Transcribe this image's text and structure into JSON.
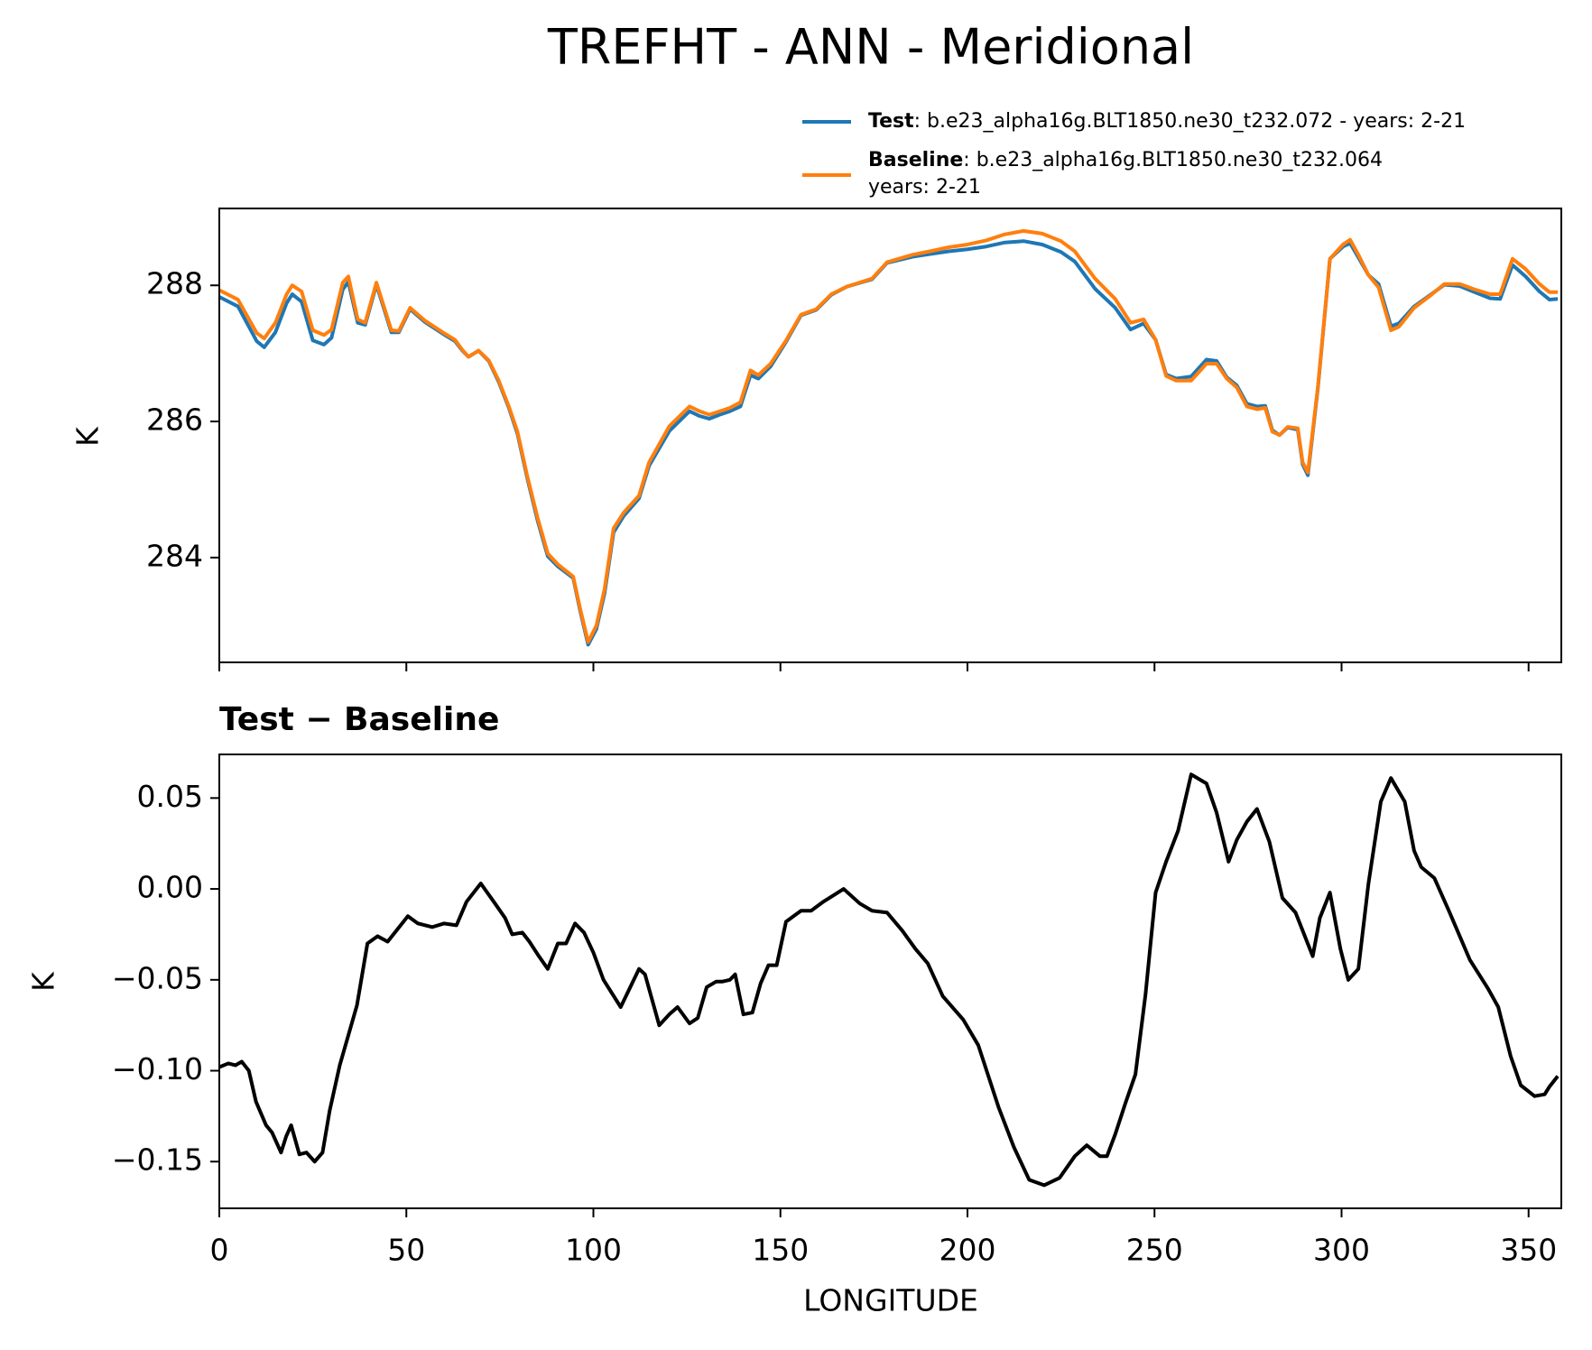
{
  "chart_data": [
    {
      "type": "line",
      "title": "TREFHT - ANN - Meridional",
      "ylabel": "K",
      "x": [
        0,
        5,
        10,
        12,
        15,
        18,
        19.5,
        22,
        25,
        28,
        30,
        33,
        34.5,
        37,
        39,
        42,
        46,
        48,
        51,
        55,
        60,
        63,
        65,
        66.6,
        69.3,
        72,
        74.7,
        77.4,
        79.7,
        82.4,
        85.1,
        87.8,
        90.5,
        94.6,
        96.5,
        98.6,
        100.8,
        103,
        105.4,
        108.1,
        112.2,
        114.9,
        120.3,
        125.7,
        128.4,
        131,
        133.8,
        136.5,
        139.3,
        142,
        144.1,
        147.4,
        151.5,
        155.5,
        159.6,
        163.6,
        167.7,
        174.5,
        178.5,
        185.3,
        190,
        195,
        200,
        205,
        210,
        215,
        220,
        225,
        228.7,
        234.1,
        239.5,
        243.6,
        247.1,
        250.3,
        253.1,
        255.8,
        259.8,
        263.9,
        266.6,
        269.3,
        272,
        274.7,
        277.4,
        279.6,
        281.5,
        283.4,
        285.6,
        288.3,
        289.6,
        291,
        293.7,
        296.9,
        300.4,
        302.3,
        304.5,
        307.2,
        309.9,
        313.2,
        315.3,
        319.4,
        323.5,
        327.5,
        331.6,
        335.6,
        339.7,
        342.4,
        345.7,
        349.2,
        352.9,
        355.6,
        357.8
      ],
      "series": [
        {
          "name": "Test",
          "label": ": b.e23_alpha16g.BLT1850.ne30_t232.072 - years: 2-21",
          "color": "#1f77b4",
          "values": [
            287.83,
            287.69,
            287.18,
            287.09,
            287.31,
            287.74,
            287.87,
            287.76,
            287.19,
            287.13,
            287.23,
            287.94,
            288.05,
            287.45,
            287.42,
            288.01,
            287.31,
            287.31,
            287.65,
            287.46,
            287.28,
            287.18,
            287.04,
            286.95,
            287.04,
            286.89,
            286.58,
            286.2,
            285.82,
            285.15,
            284.54,
            284.02,
            283.87,
            283.7,
            283.21,
            282.72,
            282.95,
            283.48,
            284.37,
            284.61,
            284.87,
            285.35,
            285.86,
            286.15,
            286.08,
            286.04,
            286.1,
            286.15,
            286.22,
            286.68,
            286.63,
            286.81,
            287.17,
            287.56,
            287.64,
            287.86,
            287.98,
            288.09,
            288.33,
            288.42,
            288.46,
            288.5,
            288.53,
            288.57,
            288.63,
            288.65,
            288.6,
            288.49,
            288.35,
            287.95,
            287.67,
            287.35,
            287.44,
            287.2,
            286.69,
            286.63,
            286.66,
            286.91,
            286.89,
            286.65,
            286.53,
            286.26,
            286.22,
            286.23,
            285.87,
            285.8,
            285.91,
            285.88,
            285.37,
            285.21,
            286.5,
            288.39,
            288.57,
            288.62,
            288.41,
            288.15,
            288.02,
            287.4,
            287.44,
            287.69,
            287.85,
            288.01,
            287.99,
            287.9,
            287.81,
            287.8,
            288.3,
            288.13,
            287.91,
            287.79,
            287.8
          ]
        },
        {
          "name": "Baseline",
          "label": ": b.e23_alpha16g.BLT1850.ne30_t232.064",
          "label2": "years: 2-21",
          "color": "#ff7f0e",
          "values": [
            287.93,
            287.79,
            287.3,
            287.22,
            287.45,
            287.87,
            288.0,
            287.91,
            287.34,
            287.27,
            287.35,
            288.04,
            288.13,
            287.5,
            287.45,
            288.04,
            287.34,
            287.33,
            287.67,
            287.48,
            287.3,
            287.2,
            287.05,
            286.95,
            287.04,
            286.9,
            286.6,
            286.22,
            285.85,
            285.18,
            284.58,
            284.06,
            283.9,
            283.72,
            283.24,
            282.76,
            283.0,
            283.54,
            284.43,
            284.66,
            284.91,
            285.4,
            285.93,
            286.22,
            286.15,
            286.1,
            286.15,
            286.2,
            286.28,
            286.75,
            286.68,
            286.85,
            287.19,
            287.57,
            287.65,
            287.87,
            287.98,
            288.1,
            288.34,
            288.45,
            288.5,
            288.56,
            288.6,
            288.66,
            288.75,
            288.8,
            288.76,
            288.65,
            288.5,
            288.1,
            287.8,
            287.45,
            287.5,
            287.2,
            286.67,
            286.6,
            286.6,
            286.85,
            286.85,
            286.63,
            286.5,
            286.22,
            286.18,
            286.2,
            285.85,
            285.8,
            285.92,
            285.9,
            285.4,
            285.25,
            286.52,
            288.39,
            288.6,
            288.67,
            288.45,
            288.15,
            287.97,
            287.34,
            287.39,
            287.67,
            287.84,
            288.02,
            288.02,
            287.94,
            287.87,
            287.87,
            288.39,
            288.24,
            288.02,
            287.9,
            287.9
          ]
        }
      ],
      "xlim": [
        0,
        358.75
      ],
      "xticks": [
        0,
        50,
        100,
        150,
        200,
        250,
        300,
        350
      ],
      "ylim": [
        282.46,
        289.13
      ],
      "yticks": [
        284,
        286,
        288
      ]
    },
    {
      "type": "line",
      "title": "Test − Baseline",
      "ylabel": "K",
      "xlabel": "LONGITUDE",
      "x": [
        0,
        2.4,
        4.3,
        6.0,
        7.9,
        9.8,
        12.5,
        14.1,
        16.5,
        17.9,
        19.2,
        21.4,
        23.3,
        25.5,
        27.6,
        29.5,
        32.2,
        36.8,
        39.6,
        42.3,
        45.0,
        47.7,
        50.4,
        53.1,
        56.9,
        60.1,
        63.4,
        66.1,
        69.9,
        73.7,
        76.4,
        78.3,
        81.0,
        82.9,
        85.1,
        87.8,
        90.5,
        92.7,
        95.1,
        97.5,
        100.0,
        102.7,
        107.3,
        112.2,
        113.8,
        117.6,
        120.3,
        122.5,
        125.7,
        127.9,
        130.3,
        132.8,
        134.4,
        136.5,
        137.9,
        140.1,
        142.5,
        144.7,
        146.8,
        149.0,
        151.5,
        155.5,
        158.2,
        161.5,
        166.9,
        171.2,
        174.5,
        178.5,
        182.6,
        186.1,
        189.4,
        193.4,
        198.9,
        202.9,
        208.3,
        212.4,
        216.5,
        220.5,
        224.6,
        228.7,
        231.9,
        235.4,
        237.3,
        239.5,
        242.2,
        244.9,
        247.6,
        250.3,
        253.1,
        256.3,
        259.8,
        263.9,
        266.6,
        269.8,
        272.0,
        274.7,
        277.4,
        280.7,
        284.2,
        287.7,
        292.3,
        294.2,
        296.9,
        299.7,
        301.8,
        304.5,
        307.2,
        310.5,
        313.2,
        316.9,
        319.4,
        321.3,
        324.8,
        328.9,
        334.3,
        339.2,
        341.9,
        345.2,
        347.9,
        351.6,
        354.3,
        355.5,
        357.8
      ],
      "series": [
        {
          "color": "#000000",
          "values": [
            -0.098,
            -0.096,
            -0.097,
            -0.095,
            -0.1,
            -0.117,
            -0.13,
            -0.134,
            -0.145,
            -0.136,
            -0.13,
            -0.146,
            -0.145,
            -0.15,
            -0.145,
            -0.122,
            -0.097,
            -0.064,
            -0.03,
            -0.026,
            -0.029,
            -0.022,
            -0.015,
            -0.019,
            -0.021,
            -0.019,
            -0.02,
            -0.007,
            0.003,
            -0.008,
            -0.016,
            -0.025,
            -0.024,
            -0.029,
            -0.036,
            -0.044,
            -0.03,
            -0.03,
            -0.019,
            -0.024,
            -0.035,
            -0.05,
            -0.065,
            -0.044,
            -0.047,
            -0.075,
            -0.069,
            -0.065,
            -0.074,
            -0.071,
            -0.054,
            -0.051,
            -0.051,
            -0.05,
            -0.047,
            -0.069,
            -0.068,
            -0.052,
            -0.042,
            -0.042,
            -0.018,
            -0.012,
            -0.012,
            -0.007,
            0.0,
            -0.008,
            -0.012,
            -0.013,
            -0.023,
            -0.033,
            -0.041,
            -0.059,
            -0.072,
            -0.086,
            -0.12,
            -0.142,
            -0.16,
            -0.163,
            -0.159,
            -0.147,
            -0.141,
            -0.147,
            -0.147,
            -0.135,
            -0.118,
            -0.102,
            -0.058,
            -0.002,
            0.015,
            0.032,
            0.063,
            0.058,
            0.042,
            0.015,
            0.027,
            0.037,
            0.044,
            0.026,
            -0.005,
            -0.013,
            -0.037,
            -0.016,
            -0.002,
            -0.033,
            -0.05,
            -0.044,
            0.003,
            0.048,
            0.061,
            0.048,
            0.021,
            0.012,
            0.006,
            -0.013,
            -0.039,
            -0.055,
            -0.065,
            -0.092,
            -0.108,
            -0.114,
            -0.113,
            -0.109,
            -0.103
          ]
        }
      ],
      "xlim": [
        0,
        358.75
      ],
      "xticks": [
        0,
        50,
        100,
        150,
        200,
        250,
        300,
        350
      ],
      "ylim": [
        -0.1757,
        0.074
      ],
      "yticks": [
        0.05,
        {
          "value": 0,
          "label": "0.00"
        },
        {
          "value": -0.05,
          "label": "−0.05"
        },
        {
          "value": -0.1,
          "label": "−0.10"
        },
        {
          "value": -0.15,
          "label": "−0.15"
        }
      ]
    }
  ]
}
